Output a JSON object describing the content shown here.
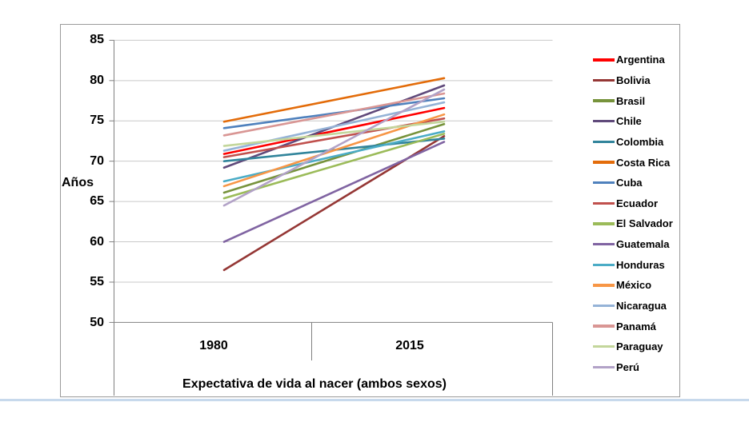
{
  "window": {
    "background": "#ffffff",
    "border_color": "#9a9a9a"
  },
  "axis": {
    "y_title": "Años",
    "x_title": "Expectativa de vida al nacer (ambos sexos)",
    "grid_color": "#c9c9c9",
    "axis_color": "#808080",
    "text_color": "#000000"
  },
  "chart_data": {
    "type": "line",
    "title": "",
    "xlabel": "Expectativa de vida al nacer (ambos sexos)",
    "ylabel": "Años",
    "categories": [
      "1980",
      "2015"
    ],
    "yticks": [
      85,
      80,
      75,
      70,
      65,
      60,
      55,
      50
    ],
    "ylim": [
      50,
      85
    ],
    "grid": true,
    "legend_position": "right",
    "series": [
      {
        "name": "Argentina",
        "color": "#FF0000",
        "values": [
          70.9,
          76.6
        ]
      },
      {
        "name": "Bolivia",
        "color": "#953735",
        "values": [
          56.5,
          73.1
        ]
      },
      {
        "name": "Brasil",
        "color": "#77933C",
        "values": [
          66.1,
          74.6
        ]
      },
      {
        "name": "Chile",
        "color": "#604A7B",
        "values": [
          69.2,
          79.4
        ]
      },
      {
        "name": "Colombia",
        "color": "#31849B",
        "values": [
          70.0,
          72.8
        ]
      },
      {
        "name": "Costa Rica",
        "color": "#E36C0A",
        "values": [
          74.9,
          80.3
        ]
      },
      {
        "name": "Cuba",
        "color": "#4F81BD",
        "values": [
          74.1,
          77.8
        ]
      },
      {
        "name": "Ecuador",
        "color": "#C0504D",
        "values": [
          70.5,
          75.3
        ]
      },
      {
        "name": "El Salvador",
        "color": "#9BBB59",
        "values": [
          65.4,
          73.4
        ]
      },
      {
        "name": "Guatemala",
        "color": "#8064A2",
        "values": [
          60.0,
          72.4
        ]
      },
      {
        "name": "Honduras",
        "color": "#4BACC6",
        "values": [
          67.5,
          73.7
        ]
      },
      {
        "name": "México",
        "color": "#F79646",
        "values": [
          66.9,
          75.8
        ]
      },
      {
        "name": "Nicaragua",
        "color": "#95B3D7",
        "values": [
          71.3,
          77.3
        ]
      },
      {
        "name": "Panamá",
        "color": "#D99694",
        "values": [
          73.2,
          78.4
        ]
      },
      {
        "name": "Paraguay",
        "color": "#C3D69B",
        "values": [
          71.9,
          74.9
        ]
      },
      {
        "name": "Perú",
        "color": "#B2A2C7",
        "values": [
          64.5,
          78.9
        ]
      }
    ]
  }
}
